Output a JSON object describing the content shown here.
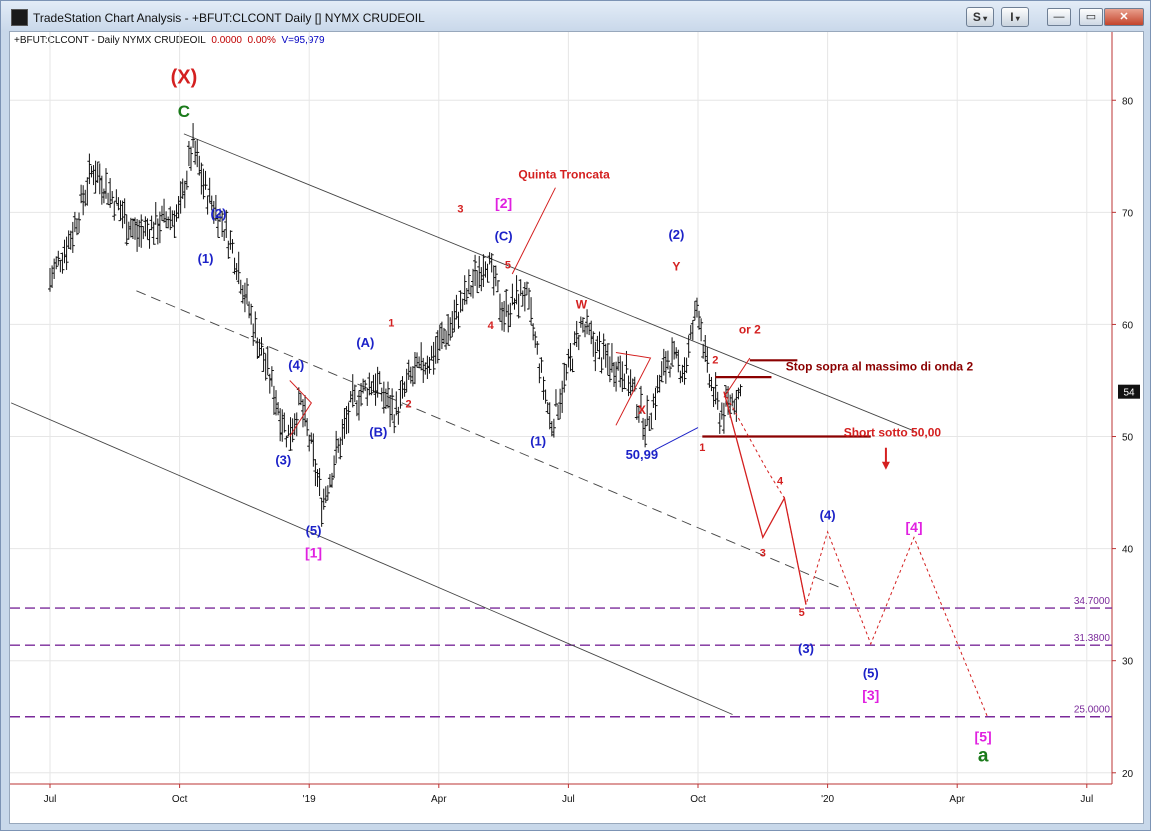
{
  "window": {
    "title": "TradeStation Chart Analysis - +BFUT:CLCONT Daily [] NYMX CRUDEOIL",
    "s_button": "S",
    "i_button": "I",
    "minimize_label": "—",
    "restore_label": "▭",
    "close_label": "✕"
  },
  "header": {
    "symbol_label": "+BFUT:CLCONT - Daily  NYMX CRUDEOIL",
    "last_price": "0.0000",
    "change_pct": "0.00%",
    "volume": "V=95,979"
  },
  "colors": {
    "red": "#d42020",
    "blue": "#1c22c8",
    "magenta": "#e020e0",
    "green": "#1a7a1a",
    "darkred": "#8b0000",
    "purple_dash": "#7a2a9a",
    "price_badge_bg": "#111111"
  },
  "chart_data": {
    "type": "candlestick",
    "x_axis_labels": [
      "Jul",
      "Oct",
      "'19",
      "Apr",
      "Jul",
      "Oct",
      "'20",
      "Apr",
      "Jul"
    ],
    "x_axis_months_index": [
      0,
      3,
      6,
      9,
      12,
      15,
      18,
      21,
      24
    ],
    "y_axis_ticks": [
      20,
      30,
      40,
      50,
      60,
      70,
      80
    ],
    "ylim": [
      19,
      86
    ],
    "current_price_badge": "54",
    "price_path": [
      [
        0.0,
        64
      ],
      [
        0.5,
        68
      ],
      [
        1.0,
        74
      ],
      [
        1.5,
        71
      ],
      [
        2.0,
        68
      ],
      [
        2.5,
        69
      ],
      [
        3.0,
        70
      ],
      [
        3.3,
        76
      ],
      [
        3.6,
        72
      ],
      [
        4.0,
        69
      ],
      [
        4.3,
        66
      ],
      [
        4.7,
        60
      ],
      [
        5.1,
        55
      ],
      [
        5.5,
        50
      ],
      [
        5.8,
        53
      ],
      [
        6.1,
        48
      ],
      [
        6.3,
        44
      ],
      [
        6.6,
        48
      ],
      [
        7.0,
        53
      ],
      [
        7.5,
        55
      ],
      [
        8.0,
        52
      ],
      [
        8.3,
        55
      ],
      [
        8.8,
        57
      ],
      [
        9.3,
        60
      ],
      [
        9.7,
        63
      ],
      [
        10.1,
        66
      ],
      [
        10.5,
        61
      ],
      [
        11.0,
        63
      ],
      [
        11.3,
        57
      ],
      [
        11.6,
        51
      ],
      [
        12.0,
        56
      ],
      [
        12.3,
        60
      ],
      [
        12.8,
        57
      ],
      [
        13.3,
        56
      ],
      [
        13.8,
        51
      ],
      [
        14.3,
        57
      ],
      [
        14.7,
        56
      ],
      [
        15.0,
        62
      ],
      [
        15.2,
        56
      ],
      [
        15.5,
        52
      ],
      [
        16.0,
        54
      ]
    ],
    "annotations": [
      {
        "text": "(X)",
        "m": 3.1,
        "v": 81.5,
        "color": "red",
        "size": 20
      },
      {
        "text": "C",
        "m": 3.1,
        "v": 78.5,
        "color": "green",
        "size": 17
      },
      {
        "text": "(2)",
        "m": 3.9,
        "v": 69.5,
        "color": "blue",
        "size": 13
      },
      {
        "text": "(1)",
        "m": 3.6,
        "v": 65.5,
        "color": "blue",
        "size": 13
      },
      {
        "text": "(4)",
        "m": 5.7,
        "v": 56,
        "color": "blue",
        "size": 13
      },
      {
        "text": "(3)",
        "m": 5.4,
        "v": 47.5,
        "color": "blue",
        "size": 13
      },
      {
        "text": "(5)",
        "m": 6.1,
        "v": 41.2,
        "color": "blue",
        "size": 13
      },
      {
        "text": "[1]",
        "m": 6.1,
        "v": 39.2,
        "color": "magenta",
        "size": 14
      },
      {
        "text": "(A)",
        "m": 7.3,
        "v": 58,
        "color": "blue",
        "size": 13
      },
      {
        "text": "(B)",
        "m": 7.6,
        "v": 50,
        "color": "blue",
        "size": 13
      },
      {
        "text": "1",
        "m": 7.9,
        "v": 59.8,
        "color": "red",
        "size": 11
      },
      {
        "text": "2",
        "m": 8.3,
        "v": 52.6,
        "color": "red",
        "size": 11
      },
      {
        "text": "3",
        "m": 9.5,
        "v": 70,
        "color": "red",
        "size": 11
      },
      {
        "text": "4",
        "m": 10.2,
        "v": 59.6,
        "color": "red",
        "size": 11
      },
      {
        "text": "5",
        "m": 10.6,
        "v": 65,
        "color": "red",
        "size": 11
      },
      {
        "text": "[2]",
        "m": 10.5,
        "v": 70.4,
        "color": "magenta",
        "size": 14
      },
      {
        "text": "(C)",
        "m": 10.5,
        "v": 67.5,
        "color": "blue",
        "size": 13
      },
      {
        "text": "Quinta Troncata",
        "m": 11.9,
        "v": 73,
        "color": "red",
        "size": 12
      },
      {
        "text": "W",
        "m": 12.3,
        "v": 61.4,
        "color": "red",
        "size": 12
      },
      {
        "text": "X",
        "m": 13.7,
        "v": 52,
        "color": "red",
        "size": 12
      },
      {
        "text": "(1)",
        "m": 11.3,
        "v": 49.2,
        "color": "blue",
        "size": 13
      },
      {
        "text": "(2)",
        "m": 14.5,
        "v": 67.6,
        "color": "blue",
        "size": 13
      },
      {
        "text": "Y",
        "m": 14.5,
        "v": 64.8,
        "color": "red",
        "size": 12
      },
      {
        "text": "50,99",
        "m": 13.7,
        "v": 48,
        "color": "blue",
        "size": 13
      },
      {
        "text": "1",
        "m": 15.1,
        "v": 48.7,
        "color": "red",
        "size": 11
      },
      {
        "text": "2",
        "m": 15.4,
        "v": 56.5,
        "color": "red",
        "size": 11
      },
      {
        "text": "or 2",
        "m": 16.2,
        "v": 59.2,
        "color": "red",
        "size": 12
      },
      {
        "text": "Stop sopra al massimo di onda 2",
        "m": 19.2,
        "v": 55.9,
        "color": "darkred",
        "size": 12
      },
      {
        "text": "Short sotto 50,00",
        "m": 19.5,
        "v": 50,
        "color": "red",
        "size": 12
      },
      {
        "text": "3",
        "m": 16.5,
        "v": 39.3,
        "color": "red",
        "size": 11
      },
      {
        "text": "4",
        "m": 16.9,
        "v": 45.7,
        "color": "red",
        "size": 11
      },
      {
        "text": "5",
        "m": 17.4,
        "v": 34,
        "color": "red",
        "size": 11
      },
      {
        "text": "(4)",
        "m": 18.0,
        "v": 42.6,
        "color": "blue",
        "size": 13
      },
      {
        "text": "(3)",
        "m": 17.5,
        "v": 30.7,
        "color": "blue",
        "size": 13
      },
      {
        "text": "(5)",
        "m": 19.0,
        "v": 28.5,
        "color": "blue",
        "size": 13
      },
      {
        "text": "[3]",
        "m": 19.0,
        "v": 26.5,
        "color": "magenta",
        "size": 14
      },
      {
        "text": "[4]",
        "m": 20.0,
        "v": 41.5,
        "color": "magenta",
        "size": 14
      },
      {
        "text": "[5]",
        "m": 21.6,
        "v": 22.8,
        "color": "magenta",
        "size": 14
      },
      {
        "text": "a",
        "m": 21.6,
        "v": 21,
        "color": "green",
        "size": 19
      }
    ],
    "horizontal_levels": [
      {
        "value": 34.7,
        "label": "34.7000"
      },
      {
        "value": 31.38,
        "label": "31.3800"
      },
      {
        "value": 25.0,
        "label": "25.0000"
      }
    ],
    "channel_lines": [
      {
        "from": [
          3.1,
          77
        ],
        "to": [
          20.0,
          50.5
        ],
        "style": "solid"
      },
      {
        "from": [
          2.0,
          63
        ],
        "to": [
          18.3,
          36.5
        ],
        "style": "dashed"
      },
      {
        "from": [
          -0.9,
          53
        ],
        "to": [
          15.8,
          25.2
        ],
        "style": "solid"
      }
    ],
    "trade_levels": [
      {
        "name": "short-level",
        "from": [
          15.1,
          50
        ],
        "to": [
          19.0,
          50
        ],
        "color": "darkred"
      },
      {
        "name": "stop-level-1",
        "from": [
          15.4,
          55.3
        ],
        "to": [
          16.7,
          55.3
        ],
        "color": "darkred"
      },
      {
        "name": "stop-level-2",
        "from": [
          16.2,
          56.8
        ],
        "to": [
          17.3,
          56.8
        ],
        "color": "darkred"
      }
    ],
    "projection_solid": [
      [
        15.6,
        54
      ],
      [
        16.5,
        41
      ],
      [
        17.0,
        44.5
      ],
      [
        17.5,
        35
      ]
    ],
    "projection_dotted": [
      [
        15.6,
        54
      ],
      [
        16.6,
        47
      ],
      [
        17.0,
        44.5
      ],
      [
        17.5,
        35
      ],
      [
        18.0,
        41.5
      ],
      [
        19.0,
        31.5
      ],
      [
        20.0,
        41
      ],
      [
        21.7,
        25
      ]
    ]
  }
}
